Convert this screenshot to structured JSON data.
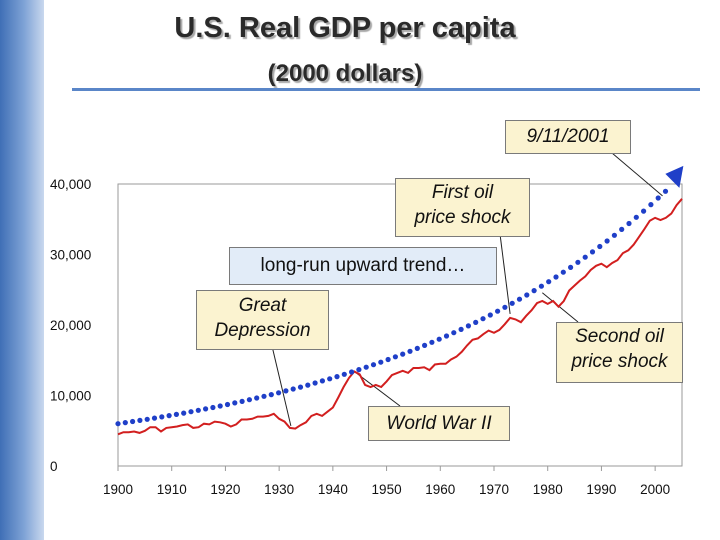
{
  "chart_data": {
    "type": "line",
    "title": "U.S. Real GDP per capita",
    "subtitle": "(2000 dollars)",
    "xlabel": "",
    "ylabel": "",
    "xlim": [
      1900,
      2005
    ],
    "ylim": [
      0,
      40000
    ],
    "x_ticks": [
      "1900",
      "1910",
      "1920",
      "1930",
      "1940",
      "1950",
      "1960",
      "1970",
      "1980",
      "1990",
      "2000"
    ],
    "y_ticks": [
      "0",
      "10,000",
      "20,000",
      "30,000",
      "40,000"
    ],
    "colors": {
      "actual": "#d21f1f",
      "trend": "#1f3fc8"
    },
    "series": [
      {
        "name": "Real GDP per capita",
        "style": "solid",
        "x": [
          1900,
          1901,
          1902,
          1903,
          1904,
          1905,
          1906,
          1907,
          1908,
          1909,
          1910,
          1911,
          1912,
          1913,
          1914,
          1915,
          1916,
          1917,
          1918,
          1919,
          1920,
          1921,
          1922,
          1923,
          1924,
          1925,
          1926,
          1927,
          1928,
          1929,
          1930,
          1931,
          1932,
          1933,
          1934,
          1935,
          1936,
          1937,
          1938,
          1939,
          1940,
          1941,
          1942,
          1943,
          1944,
          1945,
          1946,
          1947,
          1948,
          1949,
          1950,
          1951,
          1952,
          1953,
          1954,
          1955,
          1956,
          1957,
          1958,
          1959,
          1960,
          1961,
          1962,
          1963,
          1964,
          1965,
          1966,
          1967,
          1968,
          1969,
          1970,
          1971,
          1972,
          1973,
          1974,
          1975,
          1976,
          1977,
          1978,
          1979,
          1980,
          1981,
          1982,
          1983,
          1984,
          1985,
          1986,
          1987,
          1988,
          1989,
          1990,
          1991,
          1992,
          1993,
          1994,
          1995,
          1996,
          1997,
          1998,
          1999,
          2000,
          2001,
          2002,
          2003,
          2004,
          2005
        ],
        "values": [
          4500,
          4800,
          4800,
          4900,
          4700,
          5000,
          5500,
          5500,
          4900,
          5400,
          5500,
          5600,
          5800,
          5900,
          5400,
          5500,
          6000,
          5900,
          6300,
          6200,
          6000,
          5600,
          5900,
          6600,
          6600,
          6700,
          7000,
          7000,
          7100,
          7400,
          6700,
          6300,
          5400,
          5300,
          5800,
          6200,
          7100,
          7400,
          7100,
          7700,
          8300,
          9700,
          11200,
          12500,
          13400,
          13000,
          11500,
          11200,
          11500,
          11200,
          12000,
          12900,
          13200,
          13500,
          13200,
          13900,
          13900,
          14000,
          13600,
          14400,
          14500,
          14500,
          15100,
          15500,
          16200,
          17100,
          17900,
          18100,
          18700,
          19200,
          18900,
          19300,
          20100,
          21000,
          20800,
          20400,
          21300,
          22100,
          23100,
          23400,
          23000,
          23400,
          22600,
          23400,
          24900,
          25600,
          26300,
          26900,
          27800,
          28400,
          28700,
          28200,
          28800,
          29200,
          30200,
          30600,
          31400,
          32500,
          33600,
          34800,
          35200,
          34900,
          35200,
          35800,
          37000,
          37900
        ]
      },
      {
        "name": "long-run upward trend",
        "style": "dotted",
        "x": [
          1900,
          2006
        ],
        "start_value": 6000,
        "end_value": 42000
      }
    ],
    "annotations": [
      {
        "text": "9/11/2001",
        "x": 2006,
        "y": 42000
      },
      {
        "text": "First oil price shock",
        "x": 1973,
        "y": 21000
      },
      {
        "text": "long-run upward trend…",
        "x": 1968,
        "y": 28000
      },
      {
        "text": "Great Depression",
        "x": 1932,
        "y": 10000
      },
      {
        "text": "Second oil price shock",
        "x": 1979,
        "y": 29000
      },
      {
        "text": "World War II",
        "x": 1944,
        "y": 13400
      }
    ]
  },
  "annotations_text": {
    "nine_eleven": "9/11/2001",
    "first_oil_line1": "First oil",
    "first_oil_line2": "price shock",
    "trend": "long-run upward trend…",
    "depression_line1": "Great",
    "depression_line2": "Depression",
    "second_oil_line1": "Second oil",
    "second_oil_line2": "price shock",
    "ww2": "World War II"
  }
}
